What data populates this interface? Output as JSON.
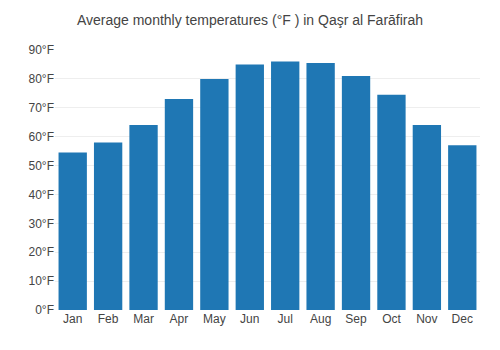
{
  "chart_data": {
    "type": "bar",
    "title": "Average monthly temperatures (°F ) in Qaşr al Farāfirah",
    "categories": [
      "Jan",
      "Feb",
      "Mar",
      "Apr",
      "May",
      "Jun",
      "Jul",
      "Aug",
      "Sep",
      "Oct",
      "Nov",
      "Dec"
    ],
    "values": [
      54.5,
      58.0,
      64.0,
      73.0,
      80.0,
      85.0,
      86.0,
      85.5,
      81.0,
      74.5,
      64.0,
      57.0
    ],
    "ylim": [
      0,
      90
    ],
    "yticks": [
      {
        "value": 0,
        "label": "0°F"
      },
      {
        "value": 10,
        "label": "10°F"
      },
      {
        "value": 20,
        "label": "20°F"
      },
      {
        "value": 30,
        "label": "30°F"
      },
      {
        "value": 40,
        "label": "40°F"
      },
      {
        "value": 50,
        "label": "50°F"
      },
      {
        "value": 60,
        "label": "60°F"
      },
      {
        "value": 70,
        "label": "70°F"
      },
      {
        "value": 80,
        "label": "80°F"
      },
      {
        "value": 90,
        "label": "90°F"
      }
    ],
    "grid": true
  }
}
